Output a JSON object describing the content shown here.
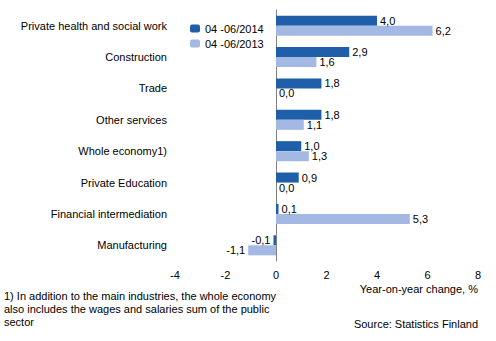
{
  "chart_data": {
    "type": "bar",
    "orientation": "horizontal",
    "categories": [
      "Private health and social work",
      "Construction",
      "Trade",
      "Other services",
      "Whole economy1)",
      "Private Education",
      "Financial intermediation",
      "Manufacturing"
    ],
    "series": [
      {
        "name": "04 -06/2014",
        "color": "#1f5ea8",
        "values": [
          4.0,
          2.9,
          1.8,
          1.8,
          1.0,
          0.9,
          0.1,
          -0.1
        ],
        "value_labels": [
          "4,0",
          "2,9",
          "1,8",
          "1,8",
          "1,0",
          "0,9",
          "0,1",
          "-0,1"
        ]
      },
      {
        "name": "04 -06/2013",
        "color": "#a4b8e4",
        "values": [
          6.2,
          1.6,
          0.0,
          1.1,
          1.3,
          0.0,
          5.3,
          -1.1
        ],
        "value_labels": [
          "6,2",
          "1,6",
          "0,0",
          "1,1",
          "1,3",
          "0,0",
          "5,3",
          "-1,1"
        ]
      }
    ],
    "xlim": [
      -4,
      8
    ],
    "xticks": [
      -4,
      -2,
      0,
      2,
      4,
      6,
      8
    ],
    "x_label": "Year-on-year change, %",
    "footnote": "1) In addition to the main industries, the whole economy also includes the wages and salaries sum of the public sector",
    "source": "Source: Statistics Finland",
    "legend": "upper left",
    "data_labels": true,
    "grid": false
  }
}
